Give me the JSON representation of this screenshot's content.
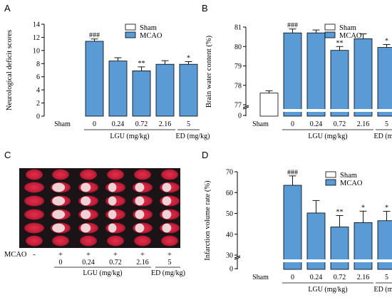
{
  "colors": {
    "bar_fill": "#5b9bd5",
    "sham_fill": "#ffffff",
    "stroke": "#000000"
  },
  "panel_c": {
    "label": "C",
    "row_label": "MCAO",
    "marks": [
      "-",
      "+",
      "+",
      "+",
      "+",
      "+"
    ],
    "doses": [
      "0",
      "0.24",
      "0.72",
      "2.16",
      "5"
    ],
    "lgu_label": "LGU (mg/kg)",
    "ed_label": "ED (mg/kg)"
  },
  "chart_data": [
    {
      "panel": "A",
      "type": "bar",
      "ylabel": "Neurological deficit scores",
      "ylim": [
        0,
        14
      ],
      "yticks": [
        "0",
        "2",
        "4",
        "6",
        "8",
        "10",
        "12",
        "14"
      ],
      "categories": [
        "Sham",
        "0",
        "0.24",
        "0.72",
        "2.16",
        "5"
      ],
      "group_labels": [
        "LGU (mg/kg)",
        "ED (mg/kg)"
      ],
      "legend": [
        "Sham",
        "MCAO"
      ],
      "values": [
        0,
        11.4,
        8.4,
        6.9,
        7.9,
        7.9
      ],
      "errors": [
        0,
        0.35,
        0.5,
        0.6,
        0.55,
        0.4
      ],
      "significance": [
        "",
        "###",
        "",
        "**",
        "",
        "*"
      ]
    },
    {
      "panel": "B",
      "type": "bar",
      "ylabel": "Brain water content (%)",
      "ylim": [
        77,
        81
      ],
      "axis_break": true,
      "yticks": [
        "0",
        "77",
        "78",
        "79",
        "80",
        "81"
      ],
      "categories": [
        "Sham",
        "0",
        "0.24",
        "0.72",
        "2.16",
        "5"
      ],
      "group_labels": [
        "LGU (mg/kg)",
        "ED (mg/kg)"
      ],
      "legend": [
        "Sham",
        "MCAO"
      ],
      "values": [
        77.6,
        80.7,
        80.7,
        79.8,
        80.4,
        79.95
      ],
      "errors": [
        0.12,
        0.2,
        0.15,
        0.2,
        0.25,
        0.15
      ],
      "significance": [
        "",
        "###",
        "",
        "**",
        "",
        "*"
      ]
    },
    {
      "panel": "D",
      "type": "bar",
      "ylabel": "Infarction volume rate (%)",
      "ylim": [
        30,
        70
      ],
      "axis_break": true,
      "yticks": [
        "0",
        "30",
        "40",
        "50",
        "60",
        "70"
      ],
      "categories": [
        "Sham",
        "0",
        "0.24",
        "0.72",
        "2.16",
        "5"
      ],
      "group_labels": [
        "LGU (mg/kg)",
        "ED (mg/kg)"
      ],
      "legend": [
        "Sham",
        "MCAO"
      ],
      "values": [
        0,
        63.5,
        50.2,
        43.5,
        45.6,
        46.5
      ],
      "errors": [
        0,
        4.5,
        6.0,
        5.5,
        5.5,
        4.5
      ],
      "significance": [
        "",
        "###",
        "",
        "**",
        "*",
        "*"
      ]
    }
  ]
}
